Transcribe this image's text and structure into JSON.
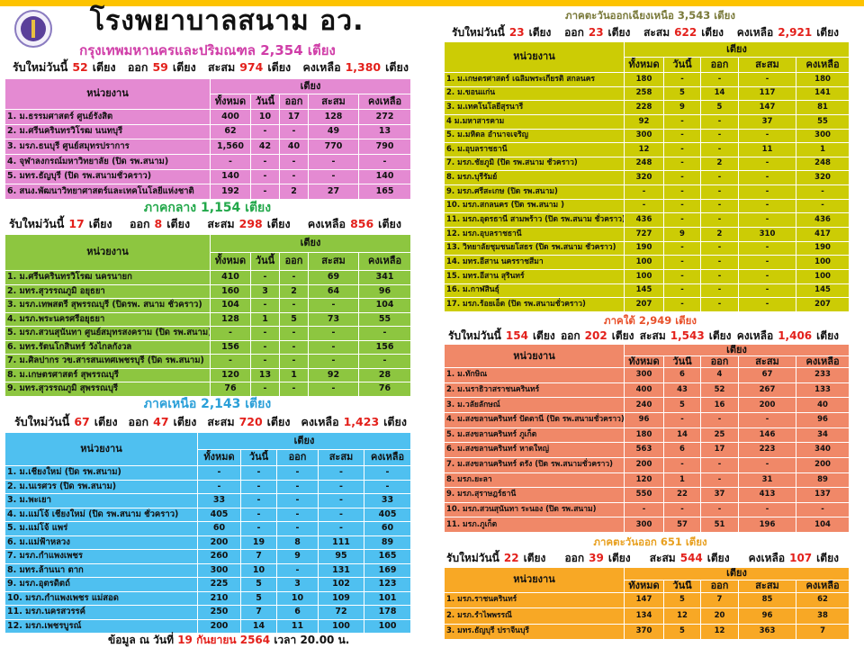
{
  "title": "โรงพยาบาลสนาม อว.",
  "labels": {
    "new": "รับใหม่วันนี้",
    "bed": "เตียง",
    "out": "ออก",
    "cum": "สะสม",
    "remain": "คงเหลือ",
    "unit": "หน่วยงาน",
    "beds": "เตียง",
    "cols": [
      "ทั้งหมด",
      "วันนี้",
      "ออก",
      "สะสม",
      "คงเหลือ"
    ]
  },
  "footer": {
    "prefix": "ข้อมูล ณ วันที่",
    "date": "19 กันยายน 2564",
    "time": "เวลา 20.00 น."
  },
  "regions": [
    {
      "key": "bangkok",
      "heading": "กรุงเทพมหานครและปริมณฑล  2,354 เตียง",
      "heading_color": "#d03ea8",
      "table_color": "#e48ad2",
      "summary": {
        "new": "52",
        "out": "59",
        "cum": "974",
        "remain": "1,380"
      },
      "rows": [
        [
          "1. ม.ธรรมศาสตร์ ศูนย์รังสิต",
          "400",
          "10",
          "17",
          "128",
          "272"
        ],
        [
          "2. ม.ศรีนครินทรวิโรฒ นนทบุรี",
          "62",
          "-",
          "-",
          "49",
          "13"
        ],
        [
          "3. มรภ.ธนบุรี ศูนย์สมุทรปราการ",
          "1,560",
          "42",
          "40",
          "770",
          "790"
        ],
        [
          "4. จุฬาลงกรณ์มหาวิทยาลัย  (ปิด รพ.สนาม)",
          "-",
          "-",
          "-",
          "-",
          "-"
        ],
        [
          "5. มทร.ธัญบุรี (ปิด รพ.สนามชั่วคราว)",
          "140",
          "-",
          "-",
          "-",
          "140"
        ],
        [
          "6. สนง.พัฒนาวิทยาศาสตร์และเทคโนโลยีแห่งชาติ",
          "192",
          "-",
          "2",
          "27",
          "165"
        ]
      ]
    },
    {
      "key": "central",
      "heading": "ภาคกลาง  1,154 เตียง",
      "heading_color": "#22a84a",
      "table_color": "#8dc640",
      "summary": {
        "new": "17",
        "out": "8",
        "cum": "298",
        "remain": "856"
      },
      "rows": [
        [
          "1. ม.ศรีนครินทรวิโรฒ นครนายก",
          "410",
          "-",
          "-",
          "69",
          "341"
        ],
        [
          "2. มทร.สุวรรณภูมิ อยุธยา",
          "160",
          "3",
          "2",
          "64",
          "96"
        ],
        [
          "3. มรภ.เทพสตรี สุพรรณบุรี (ปิดรพ. สนาม ชั่วคราว)",
          "104",
          "-",
          "-",
          "-",
          "104"
        ],
        [
          "4. มรภ.พระนครศรีอยุธยา",
          "128",
          "1",
          "5",
          "73",
          "55"
        ],
        [
          "5. มรภ.สวนสุนันทา ศูนย์สมุทรสงคราม  (ปิด รพ.สนาม)",
          "-",
          "-",
          "-",
          "-",
          "-"
        ],
        [
          "6. มทร.รัตนโกสินทร์ วังไกลกังวล",
          "156",
          "-",
          "-",
          "-",
          "156"
        ],
        [
          "7. ม.ศิลปากร วข.สารสนเทศเพชรบุรี (ปิด รพ.สนาม)",
          "-",
          "-",
          "-",
          "-",
          "-"
        ],
        [
          "8. ม.เกษตรศาสตร์ สุพรรณบุรี",
          "120",
          "13",
          "1",
          "92",
          "28"
        ],
        [
          "9. มทร.สุวรรณภูมิ สุพรรณบุรี",
          "76",
          "-",
          "-",
          "-",
          "76"
        ]
      ]
    },
    {
      "key": "north",
      "heading": "ภาคเหนือ  2,143 เตียง",
      "heading_color": "#2a9fd8",
      "table_color": "#4fc0f0",
      "summary": {
        "new": "67",
        "out": "47",
        "cum": "720",
        "remain": "1,423"
      },
      "rows": [
        [
          "1. ม.เชียงใหม่  (ปิด รพ.สนาม)",
          "-",
          "-",
          "-",
          "-",
          "-"
        ],
        [
          "2. ม.นเรศวร (ปิด รพ.สนาม)",
          "-",
          "-",
          "-",
          "-",
          "-"
        ],
        [
          "3. ม.พะเยา",
          "33",
          "-",
          "-",
          "-",
          "33"
        ],
        [
          "4. ม.แม่โจ้ เชียงใหม่ (ปิด รพ.สนาม ชั่วคราว)",
          "405",
          "-",
          "-",
          "-",
          "405"
        ],
        [
          "5. ม.แม่โจ้ แพร่",
          "60",
          "-",
          "-",
          "-",
          "60"
        ],
        [
          "6. ม.แม่ฟ้าหลวง",
          "200",
          "19",
          "8",
          "111",
          "89"
        ],
        [
          "7. มรภ.กำแพงเพชร",
          "260",
          "7",
          "9",
          "95",
          "165"
        ],
        [
          "8. มทร.ล้านนา ตาก",
          "300",
          "10",
          "-",
          "131",
          "169"
        ],
        [
          "9. มรภ.อุตรดิตถ์",
          "225",
          "5",
          "3",
          "102",
          "123"
        ],
        [
          "10. มรภ.กำแพงเพชร แม่สอด",
          "210",
          "5",
          "10",
          "109",
          "101"
        ],
        [
          "11. มรภ.นครสวรรค์",
          "250",
          "7",
          "6",
          "72",
          "178"
        ],
        [
          "12. มรภ.เพชรบูรณ์",
          "200",
          "14",
          "11",
          "100",
          "100"
        ]
      ]
    },
    {
      "key": "northeast",
      "heading": "ภาคตะวันออกเฉียงเหนือ  3,543 เตียง",
      "heading_color": "#7a7a3a",
      "table_color": "#cccc05",
      "summary": {
        "new": "23",
        "out": "23",
        "cum": "622",
        "remain": "2,921"
      },
      "rows": [
        [
          "1. ม.เกษตรศาสตร์ เฉลิมพระเกียรติ สกลนคร",
          "180",
          "-",
          "-",
          "-",
          "180"
        ],
        [
          "2. ม.ขอนแก่น",
          "258",
          "5",
          "14",
          "117",
          "141"
        ],
        [
          "3. ม.เทคโนโลยีสุรนารี",
          "228",
          "9",
          "5",
          "147",
          "81"
        ],
        [
          "4 ม.มหาสารคาม",
          "92",
          "-",
          "-",
          "37",
          "55"
        ],
        [
          "5. ม.มหิดล อำนาจเจริญ",
          "300",
          "-",
          "-",
          "-",
          "300"
        ],
        [
          "6. ม.อุบลราชธานี",
          "12",
          "-",
          "-",
          "11",
          "1"
        ],
        [
          "7. มรภ.ชัยภูมิ   (ปิด รพ.สนาม ชั่วคราว)",
          "248",
          "-",
          "2",
          "-",
          "248"
        ],
        [
          "8. มรภ.บุรีรัมย์",
          "320",
          "-",
          "-",
          "-",
          "320"
        ],
        [
          "9. มรภ.ศรีสะเกษ  (ปิด รพ.สนาม)",
          "-",
          "-",
          "-",
          "-",
          "-"
        ],
        [
          "10. มรภ.สกลนคร (ปิด รพ.สนาม )",
          "-",
          "-",
          "-",
          "-",
          "-"
        ],
        [
          "11. มรภ.อุดรธานี สามพร้าว (ปิด รพ.สนาม ชั่วคราว)",
          "436",
          "-",
          "-",
          "-",
          "436"
        ],
        [
          "12. มรภ.อุบลราชธานี",
          "727",
          "9",
          "2",
          "310",
          "417"
        ],
        [
          "13. วิทยาลัยชุมชนยโสธร (ปิด รพ.สนาม ชั่วคราว)",
          "190",
          "-",
          "-",
          "-",
          "190"
        ],
        [
          "14. มทร.อีสาน นครราชสีมา",
          "100",
          "-",
          "-",
          "-",
          "100"
        ],
        [
          "15. มทร.อีสาน สุรินทร์",
          "100",
          "-",
          "-",
          "-",
          "100"
        ],
        [
          "16. ม.กาฬสินธุ์",
          "145",
          "-",
          "-",
          "-",
          "145"
        ],
        [
          "17. มรภ.ร้อยเอ็ด (ปิด รพ.สนามชั่วคราว)",
          "207",
          "-",
          "-",
          "-",
          "207"
        ]
      ]
    },
    {
      "key": "south",
      "heading": "ภาคใต้  2,949 เตียง",
      "heading_color": "#e8502a",
      "table_color": "#f08868",
      "summary": {
        "new": "154",
        "out": "202",
        "cum": "1,543",
        "remain": "1,406"
      },
      "rows": [
        [
          "1. ม.ทักษิณ",
          "300",
          "6",
          "4",
          "67",
          "233"
        ],
        [
          "2. ม.นราธิวาสราชนครินทร์",
          "400",
          "43",
          "52",
          "267",
          "133"
        ],
        [
          "3. ม.วลัยลักษณ์",
          "240",
          "5",
          "16",
          "200",
          "40"
        ],
        [
          "4. ม.สงขลานครินทร์ ปัตตานี (ปิด รพ.สนามชั่วคราว)",
          "96",
          "-",
          "-",
          "-",
          "96"
        ],
        [
          "5. ม.สงขลานครินทร์ ภูเก็ต",
          "180",
          "14",
          "25",
          "146",
          "34"
        ],
        [
          "6. ม.สงขลานครินทร์ หาดใหญ่",
          "563",
          "6",
          "17",
          "223",
          "340"
        ],
        [
          "7. ม.สงขลานครินทร์ ตรัง  (ปิด รพ.สนามชั่วคราว)",
          "200",
          "-",
          "-",
          "-",
          "200"
        ],
        [
          "8. มรภ.ยะลา",
          "120",
          "1",
          "-",
          "31",
          "89"
        ],
        [
          "9. มรภ.สุราษฎร์ธานี",
          "550",
          "22",
          "37",
          "413",
          "137"
        ],
        [
          "10. มรภ.สวนสุนันทา ระนอง (ปิด รพ.สนาม)",
          "-",
          "-",
          "-",
          "-",
          "-"
        ],
        [
          "11. มรภ.ภูเก็ต",
          "300",
          "57",
          "51",
          "196",
          "104"
        ]
      ]
    },
    {
      "key": "east",
      "heading": "ภาคตะวันออก  651  เตียง",
      "heading_color": "#e8a020",
      "table_color": "#f8a825",
      "summary": {
        "new": "22",
        "out": "39",
        "cum": "544",
        "remain": "107"
      },
      "rows": [
        [
          "1. มรภ.ราชนครินทร์",
          "147",
          "5",
          "7",
          "85",
          "62"
        ],
        [
          "2. มรภ.รำไพพรรณี",
          "134",
          "12",
          "20",
          "96",
          "38"
        ],
        [
          "3. มทร.ธัญบุรี  ปราจีนบุรี",
          "370",
          "5",
          "12",
          "363",
          "7"
        ]
      ]
    }
  ]
}
